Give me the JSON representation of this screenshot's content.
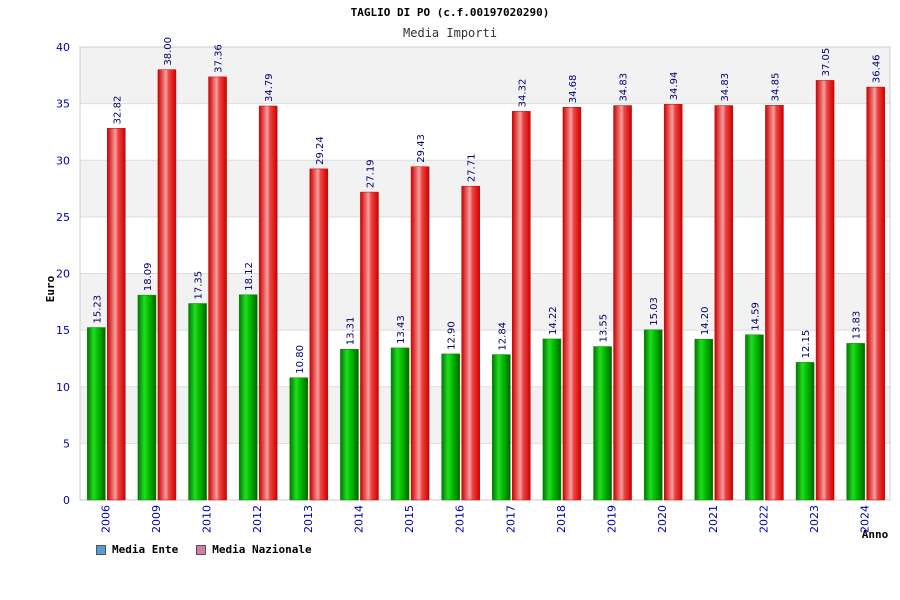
{
  "header": {
    "title": "TAGLIO DI PO (c.f.00197020290)",
    "subtitle": "Media Importi"
  },
  "legend": {
    "series_a": "Media Ente",
    "series_b": "Media Nazionale",
    "series_a_swatch": "#5b9bd5",
    "series_b_swatch": "#d47aa7"
  },
  "colors": {
    "ente_bar": "#00bb00",
    "nazionale_bar": "#ee1111",
    "band_light": "#f2f2f2"
  },
  "chart_data": {
    "type": "bar",
    "title": "TAGLIO DI PO (c.f.00197020290)",
    "subtitle": "Media Importi",
    "xlabel": "Anno",
    "ylabel": "Euro",
    "ylim": [
      0,
      40
    ],
    "yticks": [
      0,
      5,
      10,
      15,
      20,
      25,
      30,
      35,
      40
    ],
    "categories": [
      "2006",
      "2009",
      "2010",
      "2012",
      "2013",
      "2014",
      "2015",
      "2016",
      "2017",
      "2018",
      "2019",
      "2020",
      "2021",
      "2022",
      "2023",
      "2024"
    ],
    "series": [
      {
        "name": "Media Ente",
        "values": [
          15.23,
          18.09,
          17.35,
          18.12,
          10.8,
          13.31,
          13.43,
          12.9,
          12.84,
          14.22,
          13.55,
          15.03,
          14.2,
          14.59,
          12.15,
          13.83
        ],
        "labels": [
          "15.23",
          "18.09",
          "17.35",
          "18.12",
          "10.80",
          "13.31",
          "13.43",
          "12.90",
          "12.84",
          "14.22",
          "13.55",
          "15.03",
          "14.20",
          "14.59",
          "12.15",
          "13.83"
        ]
      },
      {
        "name": "Media Nazionale",
        "values": [
          32.82,
          38.0,
          37.36,
          34.79,
          29.24,
          27.19,
          29.43,
          27.71,
          34.32,
          34.68,
          34.83,
          34.94,
          34.83,
          34.85,
          37.05,
          36.46
        ],
        "labels": [
          "32.82",
          "38.00",
          "37.36",
          "34.79",
          "29.24",
          "27.19",
          "29.43",
          "27.71",
          "34.32",
          "34.68",
          "34.83",
          "34.94",
          "34.83",
          "34.85",
          "37.05",
          "36.46"
        ]
      }
    ]
  }
}
